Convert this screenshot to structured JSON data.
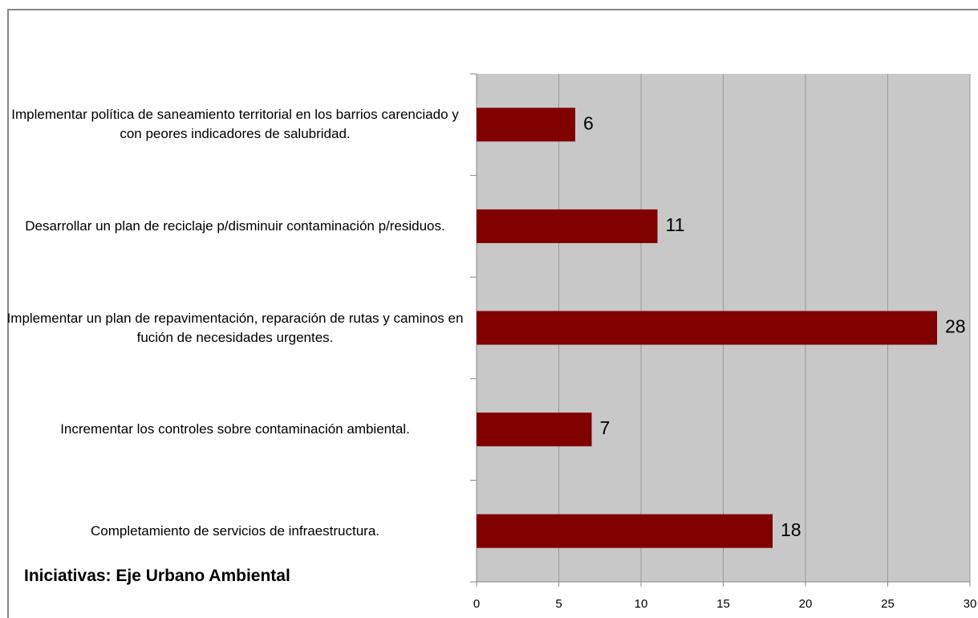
{
  "chart_data": {
    "type": "bar",
    "orientation": "horizontal",
    "title": "Iniciativas: Eje Urbano Ambiental",
    "categories": [
      "Implementar política de saneamiento territorial en los barrios carenciado y con peores indicadores de salubridad.",
      "Desarrollar un plan de reciclaje p/disminuir contaminación p/residuos.",
      "Implementar un plan de repavimentación, reparación de rutas y caminos en fución de necesidades urgentes.",
      "Incrementar los controles sobre contaminación ambiental.",
      "Completamiento de servicios de infraestructura."
    ],
    "values": [
      6,
      11,
      28,
      7,
      18
    ],
    "color": "#800000",
    "xlim": [
      0,
      30
    ],
    "xticks": [
      0,
      5,
      10,
      15,
      20,
      25,
      30
    ],
    "grid": true
  }
}
